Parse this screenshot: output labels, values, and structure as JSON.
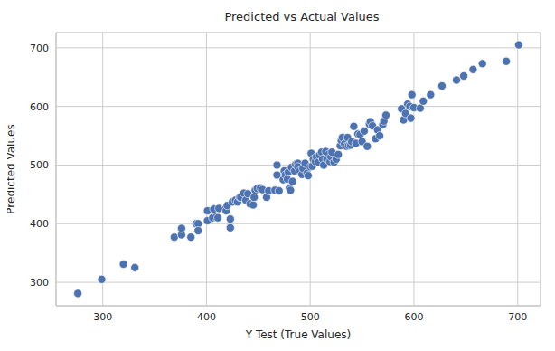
{
  "chart_data": {
    "type": "scatter",
    "title": "Predicted vs Actual Values",
    "x_label": "Y Test (True Values)",
    "y_label": "Predicted Values",
    "color": "#4c72b0",
    "marker": "circle",
    "grid": true,
    "xlim": [
      255,
      722
    ],
    "ylim": [
      260,
      726
    ],
    "xticks": [
      300,
      400,
      500,
      600,
      700
    ],
    "yticks": [
      300,
      400,
      500,
      600,
      700
    ],
    "x": [
      276,
      299,
      320,
      331,
      369,
      376,
      376,
      385,
      390,
      392,
      392,
      401,
      401,
      406,
      407,
      409,
      411,
      412,
      418,
      419,
      420,
      423,
      423,
      425,
      428,
      430,
      432,
      433,
      436,
      438,
      440,
      442,
      445,
      446,
      447,
      449,
      452,
      454,
      458,
      460,
      466,
      468,
      468,
      470,
      474,
      475,
      476,
      478,
      479,
      480,
      481,
      482,
      483,
      485,
      486,
      488,
      488,
      490,
      492,
      493,
      495,
      497,
      498,
      500,
      501,
      502,
      503,
      505,
      506,
      508,
      509,
      511,
      512,
      513,
      515,
      516,
      518,
      519,
      520,
      521,
      523,
      525,
      527,
      529,
      530,
      531,
      533,
      535,
      536,
      537,
      539,
      540,
      542,
      544,
      546,
      548,
      550,
      552,
      555,
      557,
      558,
      560,
      563,
      565,
      567,
      570,
      571,
      573,
      588,
      590,
      592,
      594,
      596,
      597,
      598,
      600,
      606,
      609,
      616,
      627,
      641,
      648,
      657,
      666,
      689,
      701
    ],
    "values": [
      281,
      305,
      331,
      325,
      377,
      381,
      392,
      377,
      400,
      400,
      388,
      405,
      422,
      410,
      425,
      411,
      410,
      426,
      425,
      422,
      431,
      408,
      393,
      437,
      440,
      437,
      445,
      445,
      452,
      440,
      451,
      434,
      432,
      445,
      457,
      460,
      461,
      458,
      445,
      456,
      457,
      483,
      500,
      456,
      475,
      490,
      483,
      476,
      488,
      461,
      457,
      496,
      472,
      490,
      501,
      503,
      497,
      490,
      484,
      494,
      503,
      486,
      482,
      497,
      520,
      498,
      510,
      506,
      514,
      505,
      517,
      522,
      510,
      500,
      523,
      510,
      519,
      506,
      514,
      522,
      505,
      510,
      518,
      533,
      542,
      547,
      536,
      532,
      547,
      533,
      534,
      540,
      566,
      537,
      553,
      552,
      540,
      558,
      532,
      570,
      574,
      567,
      545,
      560,
      550,
      569,
      575,
      585,
      596,
      577,
      588,
      604,
      600,
      580,
      620,
      598,
      597,
      609,
      620,
      635,
      645,
      652,
      663,
      673,
      677,
      705
    ]
  }
}
